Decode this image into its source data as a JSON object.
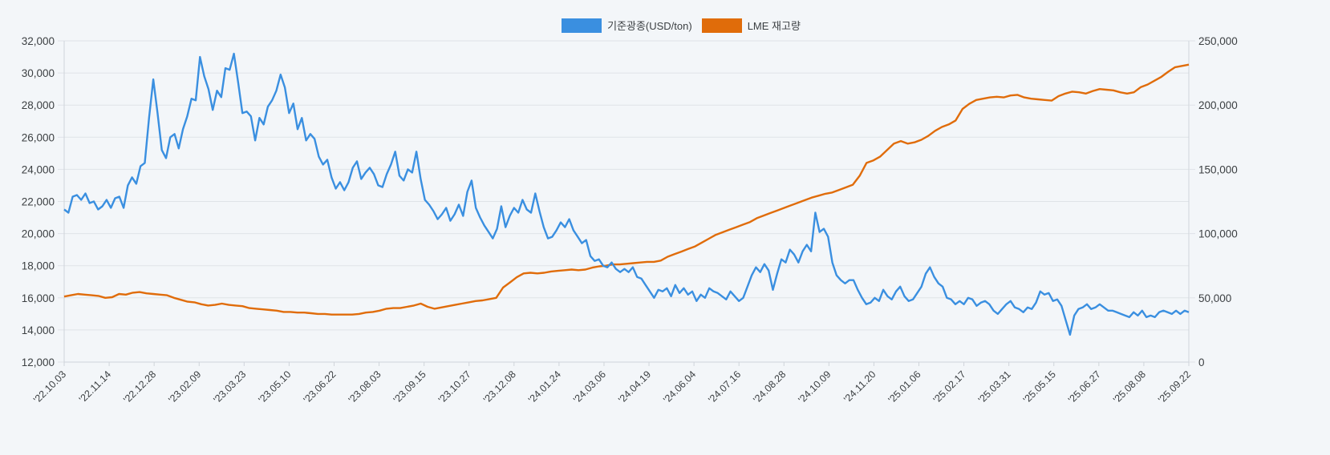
{
  "legend": {
    "items": [
      {
        "label": "기준광종(USD/ton)",
        "color": "#3a8fe0"
      },
      {
        "label": "LME 재고량",
        "color": "#e06c0a"
      }
    ]
  },
  "colors": {
    "background": "#f3f6f9",
    "grid": "#dfe3e8",
    "axis": "#cfd4da",
    "blue": "#3a8fe0",
    "orange": "#e06c0a"
  },
  "chart_data": {
    "type": "line",
    "title": "",
    "xlabel": "",
    "ylabel": "기준광종(USD/ton)",
    "ylabel_right": "LME 재고량",
    "ylim": [
      12000,
      32000
    ],
    "ylim_right": [
      0,
      250000
    ],
    "y_ticks": [
      "12,000",
      "14,000",
      "16,000",
      "18,000",
      "20,000",
      "22,000",
      "24,000",
      "26,000",
      "28,000",
      "30,000",
      "32,000"
    ],
    "y_ticks_right": [
      "0",
      "50,000",
      "100,000",
      "150,000",
      "200,000",
      "250,000"
    ],
    "grid": true,
    "legend_position": "top",
    "x_ticks": [
      "'22.10.03",
      "'22.11.14",
      "'22.12.28",
      "'23.02.09",
      "'23.03.23",
      "'23.05.10",
      "'23.06.22",
      "'23.08.03",
      "'23.09.15",
      "'23.10.27",
      "'23.12.08",
      "'24.01.24",
      "'24.03.06",
      "'24.04.19",
      "'24.06.04",
      "'24.07.16",
      "'24.08.28",
      "'24.10.09",
      "'24.11.20",
      "'25.01.06",
      "'25.02.17",
      "'25.03.31",
      "'25.05.15",
      "'25.06.27",
      "'25.08.08",
      "'25.09.22"
    ],
    "series": [
      {
        "name": "기준광종(USD/ton)",
        "axis": "left",
        "values": [
          21500,
          21300,
          22300,
          22400,
          22100,
          22500,
          21900,
          22000,
          21500,
          21700,
          22100,
          21600,
          22200,
          22300,
          21600,
          23000,
          23500,
          23100,
          24200,
          24400,
          27200,
          29600,
          27500,
          25200,
          24700,
          26000,
          26200,
          25300,
          26500,
          27300,
          28400,
          28300,
          31000,
          29800,
          29000,
          27700,
          28900,
          28500,
          30300,
          30200,
          31200,
          29400,
          27500,
          27600,
          27300,
          25800,
          27200,
          26800,
          27900,
          28300,
          28900,
          29900,
          29100,
          27500,
          28100,
          26500,
          27200,
          25800,
          26200,
          25900,
          24800,
          24300,
          24600,
          23500,
          22800,
          23200,
          22700,
          23200,
          24100,
          24500,
          23400,
          23800,
          24100,
          23700,
          23000,
          22900,
          23700,
          24300,
          25100,
          23600,
          23300,
          24000,
          23800,
          25100,
          23400,
          22100,
          21800,
          21400,
          20900,
          21200,
          21600,
          20800,
          21200,
          21800,
          21100,
          22600,
          23300,
          21600,
          21000,
          20500,
          20100,
          19700,
          20300,
          21700,
          20400,
          21100,
          21600,
          21300,
          22100,
          21500,
          21300,
          22500,
          21400,
          20400,
          19700,
          19800,
          20200,
          20700,
          20400,
          20900,
          20200,
          19800,
          19400,
          19600,
          18600,
          18300,
          18400,
          18000,
          17900,
          18200,
          17800,
          17600,
          17800,
          17600,
          17900,
          17300,
          17200,
          16800,
          16400,
          16000,
          16500,
          16400,
          16600,
          16100,
          16800,
          16300,
          16600,
          16200,
          16400,
          15800,
          16200,
          16000,
          16600,
          16400,
          16300,
          16100,
          15900,
          16400,
          16100,
          15800,
          16000,
          16700,
          17400,
          17900,
          17600,
          18100,
          17700,
          16500,
          17500,
          18400,
          18200,
          19000,
          18700,
          18200,
          18900,
          19300,
          18900,
          21300,
          20100,
          20300,
          19800,
          18200,
          17400,
          17100,
          16900,
          17100,
          17100,
          16500,
          16000,
          15600,
          15700,
          16000,
          15800,
          16500,
          16100,
          15900,
          16400,
          16700,
          16100,
          15800,
          15900,
          16300,
          16700,
          17500,
          17900,
          17300,
          16900,
          16700,
          16000,
          15900,
          15600,
          15800,
          15600,
          16000,
          15900,
          15500,
          15700,
          15800,
          15600,
          15200,
          15000,
          15300,
          15600,
          15800,
          15400,
          15300,
          15100,
          15400,
          15300,
          15700,
          16400,
          16200,
          16300,
          15800,
          15900,
          15500,
          14600,
          13700,
          14900,
          15300,
          15400,
          15600,
          15300,
          15400,
          15600,
          15400,
          15200,
          15200,
          15100,
          15000,
          14900,
          14800,
          15100,
          14900,
          15200,
          14800,
          14900,
          14800,
          15100,
          15200,
          15100,
          15000,
          15200,
          15000,
          15200,
          15100
        ],
        "ylim": [
          12000,
          32000
        ]
      },
      {
        "name": "LME 재고량",
        "axis": "right",
        "values": [
          51000,
          52000,
          53000,
          52500,
          52000,
          51500,
          50000,
          50500,
          53000,
          52500,
          54000,
          54500,
          53500,
          53000,
          52500,
          52000,
          50000,
          48500,
          47000,
          46500,
          45000,
          44000,
          44500,
          45500,
          44500,
          44000,
          43500,
          42000,
          41500,
          41000,
          40500,
          40000,
          39000,
          39000,
          38500,
          38500,
          38000,
          37500,
          37500,
          37000,
          37000,
          37000,
          37000,
          37500,
          38500,
          39000,
          40000,
          41500,
          42000,
          42000,
          43000,
          44000,
          45500,
          43000,
          41500,
          42500,
          43500,
          44500,
          45500,
          46500,
          47500,
          48000,
          49000,
          50000,
          58000,
          62000,
          66000,
          69000,
          69500,
          69000,
          69500,
          70500,
          71000,
          71500,
          72000,
          71500,
          72000,
          73500,
          74500,
          75000,
          76000,
          76000,
          76500,
          77000,
          77500,
          78000,
          78000,
          79000,
          82000,
          84000,
          86000,
          88000,
          90000,
          93000,
          96000,
          99000,
          101000,
          103000,
          105000,
          107000,
          109000,
          112000,
          114000,
          116000,
          118000,
          120000,
          122000,
          124000,
          126000,
          128000,
          129500,
          131000,
          132000,
          134000,
          136000,
          138000,
          145000,
          155000,
          157000,
          160000,
          165000,
          170000,
          172000,
          170000,
          171000,
          173000,
          176000,
          180000,
          183000,
          185000,
          188000,
          197000,
          201000,
          204000,
          205000,
          206000,
          206500,
          206000,
          207500,
          208000,
          206000,
          205000,
          204500,
          204000,
          203500,
          207000,
          209000,
          210500,
          210000,
          209000,
          211000,
          212500,
          212000,
          211500,
          210000,
          209000,
          210000,
          214000,
          216000,
          219000,
          222000,
          226000,
          229500,
          230500,
          231500
        ],
        "ylim": [
          0,
          250000
        ]
      }
    ]
  }
}
